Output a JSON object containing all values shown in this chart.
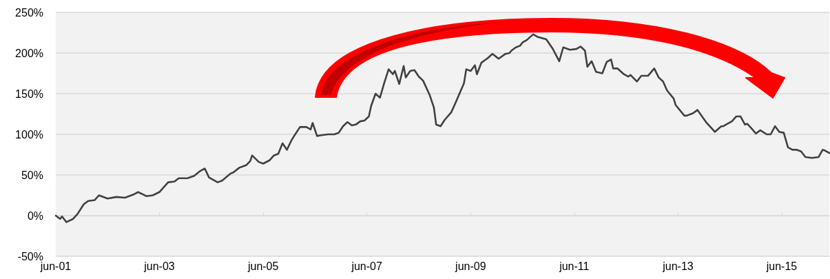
{
  "chart_data": {
    "type": "line",
    "grid": "y",
    "marker": "none",
    "xlim": [
      "2001-06-01",
      "2016-05-01"
    ],
    "xticks": [
      {
        "value": "2001-06-01",
        "label": "jun-01"
      },
      {
        "value": "2003-06-01",
        "label": "jun-03"
      },
      {
        "value": "2005-06-01",
        "label": "jun-05"
      },
      {
        "value": "2007-06-01",
        "label": "jun-07"
      },
      {
        "value": "2009-06-01",
        "label": "jun-09"
      },
      {
        "value": "2011-06-01",
        "label": "jun-11"
      },
      {
        "value": "2013-06-01",
        "label": "jun-13"
      },
      {
        "value": "2015-06-01",
        "label": "jun-15"
      }
    ],
    "ylim": [
      -50,
      250
    ],
    "yticks": [
      {
        "value": -50,
        "label": "-50%"
      },
      {
        "value": 0,
        "label": "0%"
      },
      {
        "value": 50,
        "label": "50%"
      },
      {
        "value": 100,
        "label": "100%"
      },
      {
        "value": 150,
        "label": "150%"
      },
      {
        "value": 200,
        "label": "200%"
      },
      {
        "value": 250,
        "label": "250%"
      }
    ],
    "series": [
      {
        "color": "#404040",
        "x": [
          "2001-06-01",
          "2001-07-01",
          "2001-07-15",
          "2001-08-15",
          "2001-10-01",
          "2001-11-01",
          "2001-12-15",
          "2002-01-15",
          "2002-03-01",
          "2002-04-01",
          "2002-06-01",
          "2002-08-01",
          "2002-10-01",
          "2002-12-01",
          "2003-01-01",
          "2003-03-01",
          "2003-04-15",
          "2003-06-01",
          "2003-08-01",
          "2003-09-15",
          "2003-10-15",
          "2003-12-15",
          "2004-02-01",
          "2004-03-15",
          "2004-04-15",
          "2004-05-15",
          "2004-07-15",
          "2004-08-15",
          "2004-10-15",
          "2004-11-01",
          "2004-12-15",
          "2005-02-01",
          "2005-03-01",
          "2005-03-15",
          "2005-05-01",
          "2005-06-01",
          "2005-07-15",
          "2005-08-15",
          "2005-09-15",
          "2005-10-15",
          "2005-11-15",
          "2005-12-15",
          "2006-01-01",
          "2006-02-15",
          "2006-04-01",
          "2006-05-01",
          "2006-05-15",
          "2006-06-15",
          "2006-07-15",
          "2006-09-01",
          "2006-10-15",
          "2006-11-15",
          "2006-12-15",
          "2007-01-15",
          "2007-02-15",
          "2007-03-15",
          "2007-04-15",
          "2007-05-15",
          "2007-06-15",
          "2007-07-01",
          "2007-08-01",
          "2007-09-01",
          "2007-10-01",
          "2007-11-01",
          "2007-12-01",
          "2007-12-15",
          "2008-01-15",
          "2008-02-15",
          "2008-03-01",
          "2008-04-01",
          "2008-05-01",
          "2008-06-01",
          "2008-07-01",
          "2008-08-15",
          "2008-09-15",
          "2008-10-01",
          "2008-11-01",
          "2008-12-01",
          "2009-01-15",
          "2009-02-15",
          "2009-04-15",
          "2009-05-01",
          "2009-06-01",
          "2009-07-01",
          "2009-07-15",
          "2009-08-15",
          "2009-09-15",
          "2009-10-01",
          "2009-11-01",
          "2009-12-01",
          "2009-12-15",
          "2010-02-01",
          "2010-03-01",
          "2010-03-15",
          "2010-04-15",
          "2010-05-15",
          "2010-06-01",
          "2010-07-01",
          "2010-08-15",
          "2010-09-15",
          "2010-11-15",
          "2011-01-01",
          "2011-02-15",
          "2011-03-15",
          "2011-05-01",
          "2011-06-15",
          "2011-07-15",
          "2011-08-15",
          "2011-09-01",
          "2011-10-01",
          "2011-11-01",
          "2011-12-15",
          "2012-01-15",
          "2012-02-15",
          "2012-03-01",
          "2012-04-01",
          "2012-05-15",
          "2012-06-15",
          "2012-07-01",
          "2012-08-15",
          "2012-09-15",
          "2012-11-01",
          "2012-12-15",
          "2013-01-15",
          "2013-02-15",
          "2013-03-15",
          "2013-05-01",
          "2013-05-15",
          "2013-07-15",
          "2013-08-01",
          "2013-09-15",
          "2013-10-15",
          "2013-12-15",
          "2014-01-15",
          "2014-02-15",
          "2014-04-01",
          "2014-04-15",
          "2014-05-15",
          "2014-06-15",
          "2014-07-15",
          "2014-08-15",
          "2014-09-15",
          "2014-10-01",
          "2014-11-01",
          "2014-12-01",
          "2015-01-01",
          "2015-02-15",
          "2015-03-15",
          "2015-04-15",
          "2015-05-15",
          "2015-06-15",
          "2015-07-15",
          "2015-08-15",
          "2015-09-15",
          "2015-10-15",
          "2015-11-15",
          "2016-01-01",
          "2016-02-15",
          "2016-03-15",
          "2016-04-01",
          "2016-05-01"
        ],
        "values": [
          0,
          -4,
          -1,
          -8,
          -4,
          2,
          14,
          18,
          19,
          25,
          21,
          23,
          22,
          26,
          29,
          24,
          25,
          29,
          41,
          42,
          46,
          46,
          49,
          55,
          58,
          47,
          41,
          43,
          52,
          53,
          59,
          62,
          67,
          74,
          66,
          64,
          68,
          74,
          76,
          89,
          81,
          92,
          97,
          109,
          109,
          106,
          114,
          98,
          99,
          100,
          100,
          102,
          110,
          115,
          111,
          112,
          116,
          117,
          122,
          135,
          150,
          145,
          163,
          180,
          174,
          178,
          162,
          184,
          170,
          178,
          179,
          171,
          166,
          149,
          133,
          112,
          110,
          118,
          127,
          139,
          163,
          180,
          178,
          185,
          174,
          188,
          192,
          194,
          199,
          195,
          193,
          199,
          200,
          203,
          207,
          209,
          213,
          216,
          223,
          220,
          217,
          205,
          190,
          207,
          204,
          205,
          208,
          203,
          183,
          190,
          177,
          175,
          189,
          192,
          181,
          181,
          174,
          171,
          173,
          165,
          172,
          172,
          181,
          170,
          165,
          154,
          144,
          136,
          123,
          123,
          126,
          130,
          115,
          109,
          103,
          110,
          110,
          113,
          116,
          122,
          122,
          112,
          113,
          107,
          101,
          105,
          100,
          100,
          110,
          103,
          102,
          84,
          81,
          81,
          79,
          72,
          71,
          72,
          81,
          80,
          77
        ]
      }
    ]
  }
}
